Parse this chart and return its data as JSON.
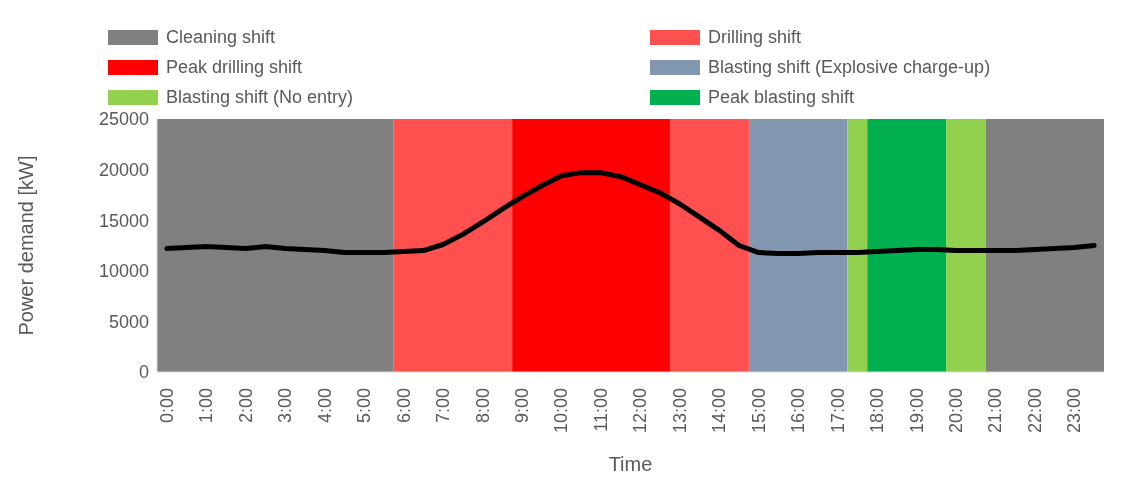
{
  "chart_data": {
    "type": "line",
    "xlabel": "Time",
    "ylabel": "Power demand [kW]",
    "x": [
      0,
      0.5,
      1,
      1.5,
      2,
      2.5,
      3,
      3.5,
      4,
      4.5,
      5,
      5.5,
      6,
      6.5,
      7,
      7.5,
      8,
      8.5,
      9,
      9.5,
      10,
      10.5,
      11,
      11.5,
      12,
      12.5,
      13,
      13.5,
      14,
      14.5,
      15,
      15.5,
      16,
      16.5,
      17,
      17.5,
      18,
      18.5,
      19,
      19.5,
      20,
      20.5,
      21,
      21.5,
      22,
      22.5,
      23,
      23.5
    ],
    "series": [
      {
        "color": "#000000",
        "values": [
          12200,
          12300,
          12400,
          12300,
          12200,
          12400,
          12200,
          12100,
          12000,
          11800,
          11800,
          11800,
          11900,
          12000,
          12600,
          13600,
          14800,
          16100,
          17300,
          18400,
          19400,
          19700,
          19700,
          19300,
          18500,
          17700,
          16600,
          15300,
          14000,
          12500,
          11800,
          11700,
          11700,
          11800,
          11800,
          11800,
          11900,
          12000,
          12100,
          12100,
          12000,
          12000,
          12000,
          12000,
          12100,
          12200,
          12300,
          12500
        ]
      }
    ],
    "xlim": [
      -0.25,
      23.75
    ],
    "xticks": [
      {
        "value": 0,
        "label": "0:00"
      },
      {
        "value": 1,
        "label": "1:00"
      },
      {
        "value": 2,
        "label": "2:00"
      },
      {
        "value": 3,
        "label": "3:00"
      },
      {
        "value": 4,
        "label": "4:00"
      },
      {
        "value": 5,
        "label": "5:00"
      },
      {
        "value": 6,
        "label": "6:00"
      },
      {
        "value": 7,
        "label": "7:00"
      },
      {
        "value": 8,
        "label": "8:00"
      },
      {
        "value": 9,
        "label": "9:00"
      },
      {
        "value": 10,
        "label": "10:00"
      },
      {
        "value": 11,
        "label": "11:00"
      },
      {
        "value": 12,
        "label": "12:00"
      },
      {
        "value": 13,
        "label": "13:00"
      },
      {
        "value": 14,
        "label": "14:00"
      },
      {
        "value": 15,
        "label": "15:00"
      },
      {
        "value": 16,
        "label": "16:00"
      },
      {
        "value": 17,
        "label": "17:00"
      },
      {
        "value": 18,
        "label": "18:00"
      },
      {
        "value": 19,
        "label": "19:00"
      },
      {
        "value": 20,
        "label": "20:00"
      },
      {
        "value": 21,
        "label": "21:00"
      },
      {
        "value": 22,
        "label": "22:00"
      },
      {
        "value": 23,
        "label": "23:00"
      }
    ],
    "ylim": [
      0,
      25000
    ],
    "yticks": [
      0,
      5000,
      10000,
      15000,
      20000,
      25000
    ],
    "bands": [
      {
        "axis": "x",
        "from": -0.25,
        "to": 5.75,
        "label": "Cleaning shift",
        "color": "#808080"
      },
      {
        "axis": "x",
        "from": 5.75,
        "to": 8.75,
        "label": "Drilling shift",
        "color": "#ff5050"
      },
      {
        "axis": "x",
        "from": 8.75,
        "to": 12.75,
        "label": "Peak drilling shift",
        "color": "#ff0000"
      },
      {
        "axis": "x",
        "from": 12.75,
        "to": 14.75,
        "color": "#ff5050"
      },
      {
        "axis": "x",
        "from": 14.75,
        "to": 17.25,
        "label": "Blasting shift (Explosive charge-up)",
        "color": "#8497b0"
      },
      {
        "axis": "x",
        "from": 17.25,
        "to": 17.75,
        "label": "Blasting shift (No entry)",
        "color": "#92d050"
      },
      {
        "axis": "x",
        "from": 17.75,
        "to": 19.75,
        "label": "Peak blasting shift",
        "color": "#00b050"
      },
      {
        "axis": "x",
        "from": 19.75,
        "to": 20.75,
        "color": "#92d050"
      },
      {
        "axis": "x",
        "from": 20.75,
        "to": 23.75,
        "color": "#808080"
      }
    ],
    "legend": "top",
    "grid": false,
    "marker": "none",
    "line_style": "solid"
  }
}
